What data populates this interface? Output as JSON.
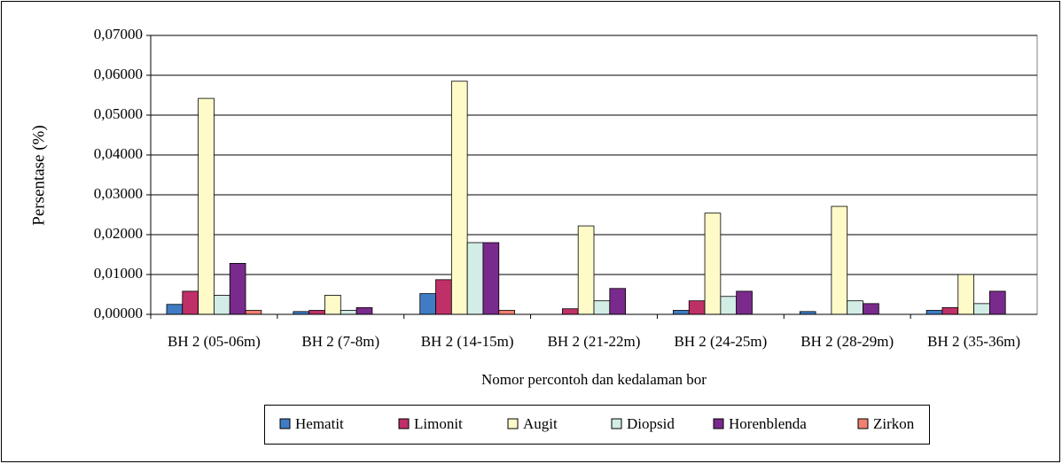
{
  "chart_data": {
    "type": "bar",
    "x_label": "Nomor percontoh dan kedalaman bor",
    "y_label": "Persentase (%)",
    "categories": [
      "BH 2 (05-06m)",
      "BH 2 (7-8m)",
      "BH 2 (14-15m)",
      "BH 2 (21-22m)",
      "BH 2 (24-25m)",
      "BH 2 (28-29m)",
      "BH 2 (35-36m)"
    ],
    "series": [
      {
        "name": "Hematit",
        "color": "#3f7cc4",
        "values": [
          0.0025,
          0.0007,
          0.0052,
          0,
          0.001,
          0.0007,
          0.001
        ]
      },
      {
        "name": "Limonit",
        "color": "#c03068",
        "values": [
          0.0058,
          0.001,
          0.0087,
          0.0014,
          0.0034,
          0,
          0.0017
        ]
      },
      {
        "name": "Augit",
        "color": "#fffbc8",
        "values": [
          0.0542,
          0.0048,
          0.0585,
          0.0222,
          0.0254,
          0.0271,
          0.01
        ]
      },
      {
        "name": "Diopsid",
        "color": "#d2ece6",
        "values": [
          0.0048,
          0.001,
          0.018,
          0.0034,
          0.0045,
          0.0034,
          0.0027
        ]
      },
      {
        "name": "Horenblenda",
        "color": "#7a2a8c",
        "values": [
          0.0128,
          0.0017,
          0.018,
          0.0065,
          0.0058,
          0.0027,
          0.0058
        ]
      },
      {
        "name": "Zirkon",
        "color": "#f08070",
        "values": [
          0.001,
          0,
          0.001,
          0,
          0,
          0,
          0
        ]
      }
    ],
    "ylim": [
      0,
      0.07
    ],
    "yticks": [
      {
        "value": 0,
        "label": "0,00000"
      },
      {
        "value": 0.01,
        "label": "0,01000"
      },
      {
        "value": 0.02,
        "label": "0,02000"
      },
      {
        "value": 0.03,
        "label": "0,03000"
      },
      {
        "value": 0.04,
        "label": "0,04000"
      },
      {
        "value": 0.05,
        "label": "0,05000"
      },
      {
        "value": 0.06,
        "label": "0,06000"
      },
      {
        "value": 0.07,
        "label": "0,07000"
      }
    ],
    "grid": true,
    "legend": "bottom"
  }
}
